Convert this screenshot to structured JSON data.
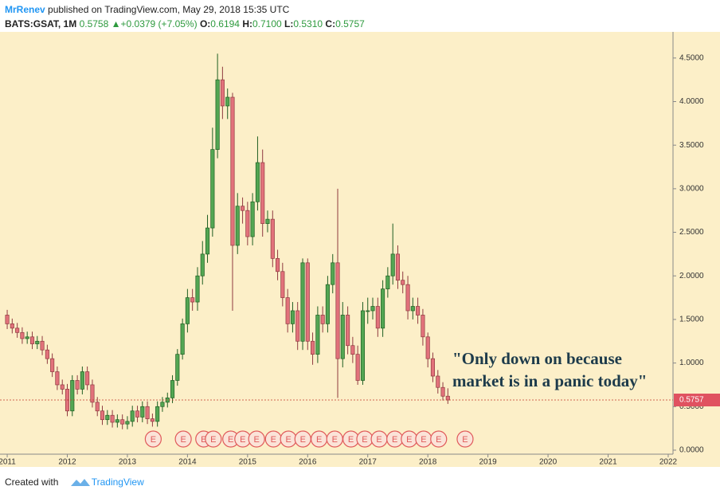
{
  "header": {
    "author": "MrRenev",
    "published": "published on TradingView.com, May 29, 2018 15:35 UTC",
    "symbol": "BATS:GSAT, 1M",
    "last": "0.5758",
    "arrow": "▲",
    "change": "+0.0379 (+7.05%)",
    "o_label": "O:",
    "o": "0.6194",
    "h_label": "H:",
    "h": "0.7100",
    "l_label": "L:",
    "l": "0.5310",
    "c_label": "C:",
    "c": "0.5757"
  },
  "footer": {
    "created": "Created with",
    "brand": "TradingView"
  },
  "chart_data": {
    "type": "candlestick",
    "up_color": "#53a653",
    "down_color": "#e2727b",
    "background": "#fcefc8",
    "xlim": [
      2010.88,
      2022.08
    ],
    "xticks": [
      2011,
      2012,
      2013,
      2014,
      2015,
      2016,
      2017,
      2018,
      2019,
      2020,
      2021,
      2022
    ],
    "ylim": [
      -0.046,
      4.8
    ],
    "yticks": [
      {
        "value": 0,
        "label": "0.0000"
      },
      {
        "value": 0.5,
        "label": "0.5000"
      },
      {
        "value": 1,
        "label": "1.0000"
      },
      {
        "value": 1.5,
        "label": "1.5000"
      },
      {
        "value": 2,
        "label": "2.0000"
      },
      {
        "value": 2.5,
        "label": "2.5000"
      },
      {
        "value": 3,
        "label": "3.0000"
      },
      {
        "value": 3.5,
        "label": "3.5000"
      },
      {
        "value": 4,
        "label": "4.0000"
      },
      {
        "value": 4.5,
        "label": "4.5000"
      }
    ],
    "x": [
      2011,
      2011.083,
      2011.167,
      2011.25,
      2011.333,
      2011.417,
      2011.5,
      2011.583,
      2011.667,
      2011.75,
      2011.833,
      2011.917,
      2012,
      2012.083,
      2012.167,
      2012.25,
      2012.333,
      2012.417,
      2012.5,
      2012.583,
      2012.667,
      2012.75,
      2012.833,
      2012.917,
      2013,
      2013.083,
      2013.167,
      2013.25,
      2013.333,
      2013.417,
      2013.5,
      2013.583,
      2013.667,
      2013.75,
      2013.833,
      2013.917,
      2014,
      2014.083,
      2014.167,
      2014.25,
      2014.333,
      2014.417,
      2014.5,
      2014.583,
      2014.667,
      2014.75,
      2014.833,
      2014.917,
      2015,
      2015.083,
      2015.167,
      2015.25,
      2015.333,
      2015.417,
      2015.5,
      2015.583,
      2015.667,
      2015.75,
      2015.833,
      2015.917,
      2016,
      2016.083,
      2016.167,
      2016.25,
      2016.333,
      2016.417,
      2016.5,
      2016.583,
      2016.667,
      2016.75,
      2016.833,
      2016.917,
      2017,
      2017.083,
      2017.167,
      2017.25,
      2017.333,
      2017.417,
      2017.5,
      2017.583,
      2017.667,
      2017.75,
      2017.833,
      2017.917,
      2018,
      2018.083,
      2018.167,
      2018.25,
      2018.333
    ],
    "open": [
      1.55,
      1.45,
      1.4,
      1.35,
      1.28,
      1.3,
      1.22,
      1.25,
      1.15,
      1.05,
      0.9,
      0.75,
      0.7,
      0.45,
      0.8,
      0.7,
      0.9,
      0.75,
      0.55,
      0.45,
      0.35,
      0.4,
      0.32,
      0.35,
      0.3,
      0.33,
      0.45,
      0.38,
      0.5,
      0.36,
      0.33,
      0.5,
      0.55,
      0.6,
      0.8,
      1.1,
      1.45,
      1.75,
      1.7,
      2.0,
      2.25,
      2.55,
      3.45,
      4.25,
      3.95,
      4.05,
      2.35,
      2.8,
      2.75,
      2.45,
      2.85,
      3.3,
      2.6,
      2.65,
      2.2,
      2.05,
      1.75,
      1.45,
      1.6,
      1.25,
      2.15,
      1.25,
      1.1,
      1.55,
      1.45,
      1.9,
      2.15,
      1.05,
      1.55,
      1.2,
      1.1,
      0.8,
      1.6,
      1.6,
      1.65,
      1.4,
      1.85,
      2.0,
      2.25,
      1.95,
      1.9,
      1.6,
      1.65,
      1.55,
      1.3,
      1.05,
      0.85,
      0.72,
      0.6194
    ],
    "high": [
      1.61,
      1.51,
      1.46,
      1.41,
      1.36,
      1.36,
      1.31,
      1.31,
      1.21,
      1.11,
      0.96,
      0.81,
      0.76,
      0.86,
      0.86,
      0.96,
      0.96,
      0.81,
      0.61,
      0.51,
      0.46,
      0.46,
      0.41,
      0.41,
      0.39,
      0.51,
      0.51,
      0.56,
      0.56,
      0.42,
      0.56,
      0.61,
      0.66,
      0.86,
      1.16,
      1.51,
      1.85,
      1.85,
      2.1,
      2.4,
      2.7,
      3.7,
      4.55,
      4.4,
      4.15,
      4.1,
      2.95,
      2.9,
      2.85,
      2.95,
      3.6,
      3.45,
      2.75,
      2.75,
      2.3,
      2.15,
      1.85,
      1.7,
      1.7,
      2.2,
      2.2,
      1.35,
      1.65,
      1.65,
      2.0,
      2.25,
      3.0,
      1.7,
      1.65,
      1.3,
      1.2,
      1.7,
      1.75,
      1.75,
      1.75,
      1.95,
      2.1,
      2.6,
      2.35,
      2.05,
      2.0,
      1.75,
      1.75,
      1.62,
      1.35,
      1.12,
      0.92,
      0.78,
      0.71
    ],
    "low": [
      1.39,
      1.34,
      1.29,
      1.22,
      1.22,
      1.16,
      1.16,
      1.09,
      0.99,
      0.84,
      0.69,
      0.64,
      0.39,
      0.39,
      0.64,
      0.64,
      0.69,
      0.49,
      0.39,
      0.29,
      0.29,
      0.26,
      0.26,
      0.24,
      0.24,
      0.27,
      0.32,
      0.32,
      0.3,
      0.27,
      0.27,
      0.44,
      0.49,
      0.54,
      0.74,
      1.04,
      1.35,
      1.6,
      1.6,
      1.9,
      2.15,
      2.45,
      3.35,
      3.8,
      3.8,
      1.6,
      2.25,
      2.6,
      2.35,
      2.35,
      2.75,
      2.45,
      2.5,
      2.1,
      1.95,
      1.65,
      1.35,
      1.35,
      1.15,
      1.15,
      1.15,
      0.98,
      1.0,
      1.35,
      1.35,
      1.8,
      0.6,
      0.95,
      1.1,
      1.0,
      0.75,
      0.75,
      1.45,
      1.5,
      1.3,
      1.3,
      1.75,
      1.9,
      1.85,
      1.8,
      1.5,
      1.5,
      1.45,
      1.2,
      0.95,
      0.78,
      0.65,
      0.57,
      0.531
    ],
    "close": [
      1.45,
      1.4,
      1.35,
      1.28,
      1.3,
      1.22,
      1.25,
      1.15,
      1.05,
      0.9,
      0.75,
      0.7,
      0.45,
      0.8,
      0.7,
      0.9,
      0.75,
      0.55,
      0.45,
      0.35,
      0.4,
      0.32,
      0.35,
      0.3,
      0.33,
      0.45,
      0.38,
      0.5,
      0.36,
      0.33,
      0.5,
      0.55,
      0.6,
      0.8,
      1.1,
      1.45,
      1.75,
      1.7,
      2.0,
      2.25,
      2.55,
      3.45,
      4.25,
      3.95,
      4.05,
      2.35,
      2.8,
      2.75,
      2.45,
      2.85,
      3.3,
      2.6,
      2.65,
      2.2,
      2.05,
      1.75,
      1.45,
      1.6,
      1.25,
      2.15,
      1.25,
      1.1,
      1.55,
      1.45,
      1.9,
      2.15,
      1.05,
      1.55,
      1.2,
      1.1,
      0.8,
      1.6,
      1.6,
      1.65,
      1.4,
      1.85,
      2.0,
      2.25,
      1.95,
      1.9,
      1.6,
      1.65,
      1.55,
      1.3,
      1.05,
      0.85,
      0.72,
      0.6194,
      0.5757
    ],
    "earnings": {
      "label": "E",
      "x": [
        2013.43,
        2013.93,
        2014.27,
        2014.43,
        2014.72,
        2014.92,
        2015.15,
        2015.43,
        2015.68,
        2015.92,
        2016.19,
        2016.45,
        2016.72,
        2016.95,
        2017.19,
        2017.45,
        2017.69,
        2017.93,
        2018.18,
        2018.62
      ]
    },
    "annotation": [
      "\"Only down on because",
      "market is in a panic today\""
    ]
  }
}
